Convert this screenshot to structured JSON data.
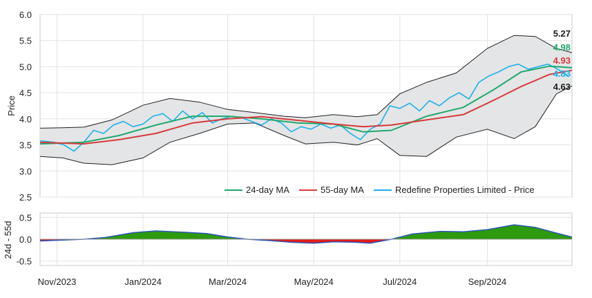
{
  "chart_data": [
    {
      "type": "line",
      "ylabel": "Price",
      "ylim": [
        2.5,
        6.0
      ],
      "yticks": [
        "2.5",
        "3.0",
        "3.5",
        "4.0",
        "4.5",
        "5.0",
        "5.5",
        "6.0"
      ],
      "grid": true,
      "legend_position": "bottom-right",
      "legend": [
        "24-day MA",
        "55-day MA",
        "Redefine Properties Limited - Price"
      ],
      "x_range": [
        "2023-10-20",
        "2024-10-31"
      ],
      "series": [
        {
          "name": "Redefine Properties Limited - Price",
          "color": "#1cb0e8",
          "x": [
            "2023-10-20",
            "2023-10-30",
            "2023-11-06",
            "2023-11-13",
            "2023-11-20",
            "2023-11-27",
            "2023-12-04",
            "2023-12-11",
            "2023-12-18",
            "2023-12-25",
            "2024-01-01",
            "2024-01-08",
            "2024-01-15",
            "2024-01-22",
            "2024-01-29",
            "2024-02-05",
            "2024-02-12",
            "2024-02-19",
            "2024-02-26",
            "2024-03-04",
            "2024-03-11",
            "2024-03-18",
            "2024-03-25",
            "2024-04-01",
            "2024-04-08",
            "2024-04-15",
            "2024-04-22",
            "2024-04-29",
            "2024-05-06",
            "2024-05-13",
            "2024-05-20",
            "2024-05-27",
            "2024-06-03",
            "2024-06-10",
            "2024-06-17",
            "2024-06-24",
            "2024-07-01",
            "2024-07-08",
            "2024-07-15",
            "2024-07-22",
            "2024-07-29",
            "2024-08-05",
            "2024-08-12",
            "2024-08-19",
            "2024-08-26",
            "2024-09-02",
            "2024-09-09",
            "2024-09-16",
            "2024-09-23",
            "2024-09-30",
            "2024-10-07",
            "2024-10-14",
            "2024-10-21",
            "2024-10-28"
          ],
          "values": [
            3.58,
            3.55,
            3.5,
            3.38,
            3.55,
            3.78,
            3.72,
            3.88,
            3.95,
            3.85,
            3.9,
            4.05,
            4.1,
            3.95,
            4.15,
            4.0,
            4.12,
            3.92,
            4.0,
            4.05,
            4.02,
            3.95,
            3.88,
            4.0,
            3.92,
            3.75,
            3.85,
            3.8,
            3.9,
            3.82,
            3.88,
            3.72,
            3.6,
            3.8,
            3.9,
            4.25,
            4.2,
            4.3,
            4.15,
            4.35,
            4.25,
            4.4,
            4.5,
            4.38,
            4.7,
            4.82,
            4.9,
            5.0,
            5.05,
            4.95,
            5.0,
            5.05,
            4.95,
            4.83
          ]
        },
        {
          "name": "24-day MA",
          "color": "#20a86b",
          "x": [
            "2023-10-20",
            "2023-11-20",
            "2023-12-15",
            "2024-01-10",
            "2024-02-05",
            "2024-03-01",
            "2024-03-25",
            "2024-04-20",
            "2024-05-15",
            "2024-06-05",
            "2024-06-25",
            "2024-07-20",
            "2024-08-15",
            "2024-09-05",
            "2024-09-25",
            "2024-10-15",
            "2024-10-31"
          ],
          "values": [
            3.52,
            3.55,
            3.68,
            3.88,
            4.05,
            4.05,
            4.0,
            3.92,
            3.9,
            3.75,
            3.78,
            4.05,
            4.22,
            4.55,
            4.9,
            5.01,
            4.98
          ]
        },
        {
          "name": "55-day MA",
          "color": "#d63a3a",
          "x": [
            "2023-10-20",
            "2023-11-20",
            "2023-12-15",
            "2024-01-10",
            "2024-02-05",
            "2024-03-01",
            "2024-03-25",
            "2024-04-20",
            "2024-05-15",
            "2024-06-05",
            "2024-06-25",
            "2024-07-20",
            "2024-08-15",
            "2024-09-05",
            "2024-09-25",
            "2024-10-15",
            "2024-10-31"
          ],
          "values": [
            3.55,
            3.52,
            3.6,
            3.72,
            3.92,
            4.0,
            4.04,
            3.97,
            3.9,
            3.85,
            3.88,
            3.98,
            4.08,
            4.35,
            4.62,
            4.85,
            4.93
          ]
        }
      ],
      "band": {
        "x": [
          "2023-10-20",
          "2023-11-05",
          "2023-11-20",
          "2023-12-10",
          "2024-01-01",
          "2024-01-20",
          "2024-02-10",
          "2024-03-01",
          "2024-03-20",
          "2024-04-10",
          "2024-04-25",
          "2024-05-15",
          "2024-06-01",
          "2024-06-15",
          "2024-07-01",
          "2024-07-20",
          "2024-08-10",
          "2024-09-01",
          "2024-09-20",
          "2024-10-05",
          "2024-10-20",
          "2024-10-31"
        ],
        "upper": [
          3.82,
          3.83,
          3.84,
          3.98,
          4.26,
          4.39,
          4.32,
          4.18,
          4.12,
          4.05,
          4.02,
          4.08,
          4.04,
          4.08,
          4.48,
          4.7,
          4.88,
          5.35,
          5.6,
          5.58,
          5.35,
          5.27
        ],
        "lower": [
          3.28,
          3.25,
          3.15,
          3.12,
          3.25,
          3.55,
          3.72,
          3.9,
          3.92,
          3.68,
          3.52,
          3.55,
          3.5,
          3.62,
          3.3,
          3.28,
          3.65,
          3.8,
          3.62,
          3.85,
          4.48,
          4.63
        ]
      },
      "end_labels": [
        {
          "text": "5.27",
          "color": "#1e1e1e"
        },
        {
          "text": "4.98",
          "color": "#20a86b"
        },
        {
          "text": "4.93",
          "color": "#d63a3a"
        },
        {
          "text": "4.83",
          "color": "#1cb0e8"
        },
        {
          "text": "4.63",
          "color": "#1e1e1e"
        }
      ]
    },
    {
      "type": "area",
      "ylabel": "24d - 55d",
      "ylim": [
        -0.6,
        0.6
      ],
      "yticks": [
        "-0.5",
        "0.0",
        "0.5"
      ],
      "grid": true,
      "xticks": [
        "Nov/2023",
        "Jan/2024",
        "Mar/2024",
        "May/2024",
        "Jul/2024",
        "Sep/2024"
      ],
      "positive_color": "#2e9a0e",
      "negative_color": "#e21b1b",
      "series": [
        {
          "x": [
            "2023-10-20",
            "2023-11-05",
            "2023-11-20",
            "2023-12-05",
            "2023-12-25",
            "2024-01-10",
            "2024-01-30",
            "2024-02-15",
            "2024-03-01",
            "2024-03-15",
            "2024-03-30",
            "2024-04-15",
            "2024-05-01",
            "2024-05-15",
            "2024-05-30",
            "2024-06-10",
            "2024-06-25",
            "2024-07-10",
            "2024-07-30",
            "2024-08-15",
            "2024-09-01",
            "2024-09-20",
            "2024-10-05",
            "2024-10-20",
            "2024-10-31"
          ],
          "values": [
            -0.04,
            -0.02,
            0.0,
            0.04,
            0.15,
            0.19,
            0.16,
            0.13,
            0.05,
            0.0,
            -0.03,
            -0.07,
            -0.09,
            -0.06,
            -0.07,
            -0.09,
            0.0,
            0.12,
            0.18,
            0.17,
            0.22,
            0.33,
            0.27,
            0.14,
            0.05
          ]
        }
      ]
    }
  ]
}
